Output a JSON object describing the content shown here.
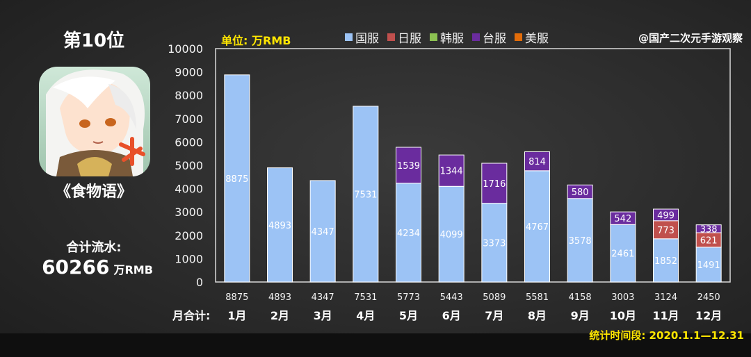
{
  "rank_title": "第10位",
  "game_name": "《食物语》",
  "total_label": "合计流水:",
  "total_value": "60266",
  "total_unit": "万RMB",
  "unit_label": "单位: 万RMB",
  "watermark": "@国产二次元手游观察",
  "period": "统计时间段: 2020.1.1—12.31",
  "month_total_label": "月合计:",
  "icons": {
    "game_icon": "anime-character-app-icon"
  },
  "chart_data": {
    "type": "bar",
    "stacked": true,
    "categories": [
      "1月",
      "2月",
      "3月",
      "4月",
      "5月",
      "6月",
      "7月",
      "8月",
      "9月",
      "10月",
      "11月",
      "12月"
    ],
    "series": [
      {
        "name": "国服",
        "color": "#9cc3f5",
        "values": [
          8875,
          4893,
          4347,
          7531,
          4234,
          4099,
          3373,
          4767,
          3578,
          2461,
          1852,
          1491
        ]
      },
      {
        "name": "日服",
        "color": "#c0504d",
        "values": [
          0,
          0,
          0,
          0,
          0,
          0,
          0,
          0,
          0,
          0,
          773,
          621
        ]
      },
      {
        "name": "韩服",
        "color": "#8cc152",
        "values": [
          0,
          0,
          0,
          0,
          0,
          0,
          0,
          0,
          0,
          0,
          0,
          0
        ]
      },
      {
        "name": "台服",
        "color": "#6a2c9e",
        "values": [
          0,
          0,
          0,
          0,
          1539,
          1344,
          1716,
          814,
          580,
          542,
          499,
          338
        ]
      },
      {
        "name": "美服",
        "color": "#e36c09",
        "values": [
          0,
          0,
          0,
          0,
          0,
          0,
          0,
          0,
          0,
          0,
          0,
          0
        ]
      }
    ],
    "totals": [
      8875,
      4893,
      4347,
      7531,
      5773,
      5443,
      5089,
      5581,
      4158,
      3003,
      3124,
      2450
    ],
    "ylim": [
      0,
      10000
    ],
    "yticks": [
      0,
      1000,
      2000,
      3000,
      4000,
      5000,
      6000,
      7000,
      8000,
      9000,
      10000
    ],
    "ylabel": "",
    "xlabel": "",
    "grid": false,
    "legend": "top"
  }
}
